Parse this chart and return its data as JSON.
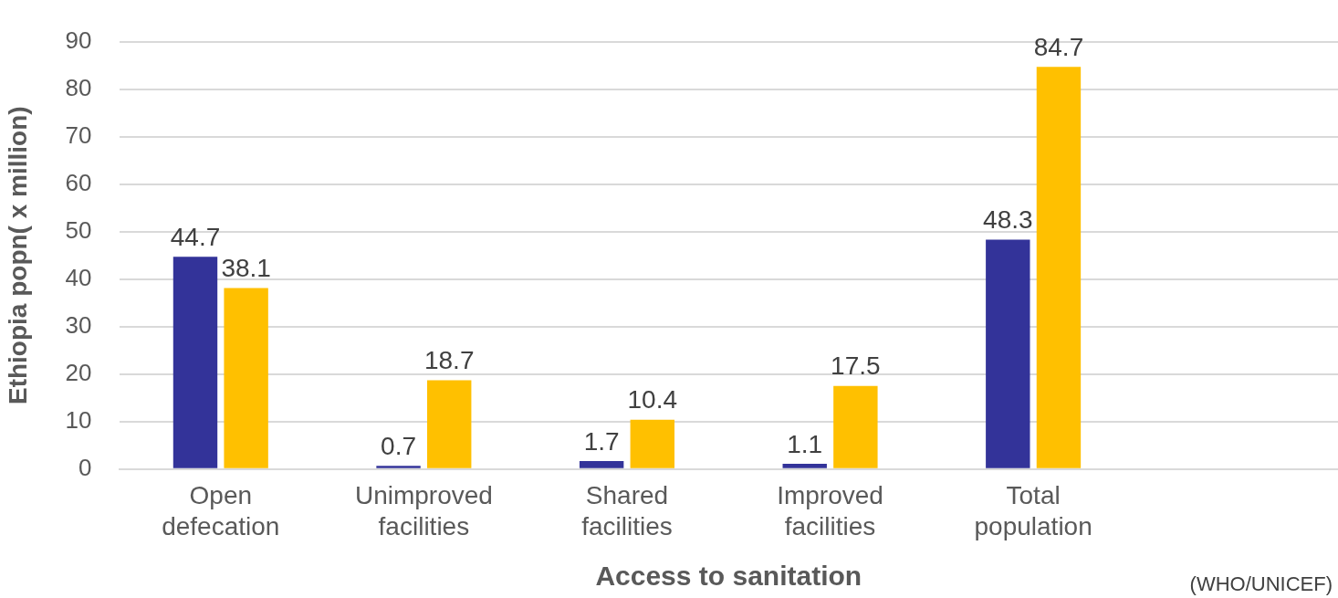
{
  "chart_data": {
    "type": "bar",
    "xlabel": "Access to sanitation",
    "ylabel": "Ethiopia popn( x million)",
    "categories": [
      "Open defecation",
      "Unimproved facilities",
      "Shared facilities",
      "Improved facilities",
      "Total population",
      null
    ],
    "series": [
      {
        "color": "#333399",
        "values": [
          44.7,
          0.7,
          1.7,
          1.1,
          48.3,
          null
        ]
      },
      {
        "color": "#ffc000",
        "values": [
          38.1,
          18.7,
          10.4,
          17.5,
          84.7,
          null
        ]
      }
    ],
    "ylim": [
      0,
      90
    ],
    "yticks": [
      0,
      10,
      20,
      30,
      40,
      50,
      60,
      70,
      80,
      90
    ],
    "grid": "y",
    "legend": false,
    "data_labels": true,
    "annotations": [
      "(WHO/UNICEF)"
    ]
  }
}
